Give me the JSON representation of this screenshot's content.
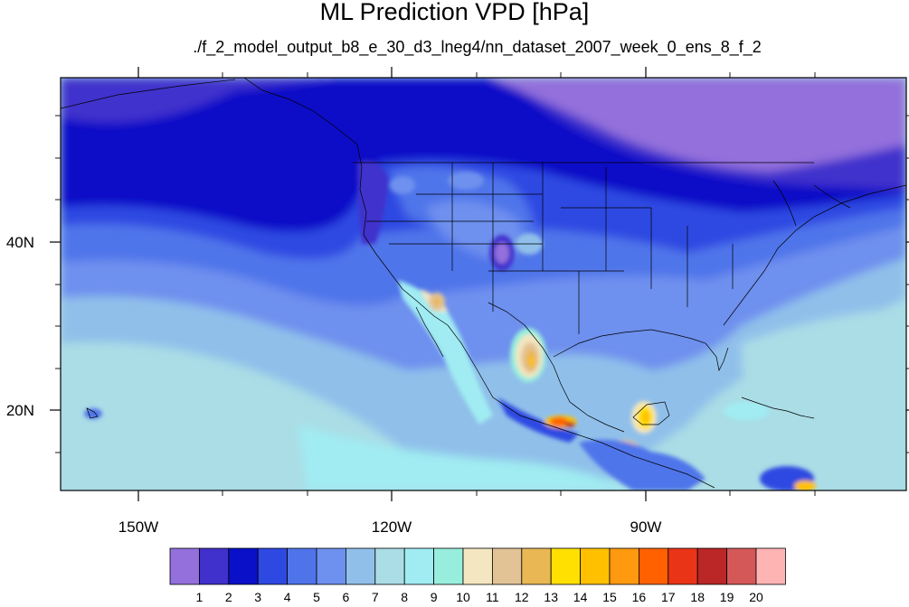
{
  "title": "ML Prediction VPD [hPa]",
  "subtitle": "./f_2_model_output_b8_e_30_d3_lneg4/nn_dataset_2007_week_0_ens_8_f_2",
  "chart_data": {
    "type": "heatmap",
    "title": "ML Prediction VPD [hPa]",
    "subtitle": "./f_2_model_output_b8_e_30_d3_lneg4/nn_dataset_2007_week_0_ens_8_f_2",
    "x_ticks": [
      {
        "lon": -150,
        "label": "150W"
      },
      {
        "lon": -120,
        "label": "120W"
      },
      {
        "lon": -90,
        "label": "90W"
      }
    ],
    "y_ticks": [
      {
        "lat": 40,
        "label": "40N"
      },
      {
        "lat": 20,
        "label": "20N"
      }
    ],
    "colorbar_labels": [
      "1",
      "2",
      "3",
      "4",
      "5",
      "6",
      "7",
      "8",
      "9",
      "10",
      "11",
      "12",
      "13",
      "14",
      "15",
      "16",
      "17",
      "18",
      "19",
      "20"
    ],
    "colorbar_colors": [
      "#9370db",
      "#4030cc",
      "#0a10c8",
      "#2e48e2",
      "#4f74ea",
      "#6e90ee",
      "#90c0ea",
      "#aadde6",
      "#a0ecf2",
      "#98eedd",
      "#f4e6c0",
      "#e2c396",
      "#eab755",
      "#ffe000",
      "#ffc000",
      "#ff9a10",
      "#ff6000",
      "#ea3418",
      "#bb2626",
      "#d45858",
      "#ffb4b4"
    ]
  }
}
